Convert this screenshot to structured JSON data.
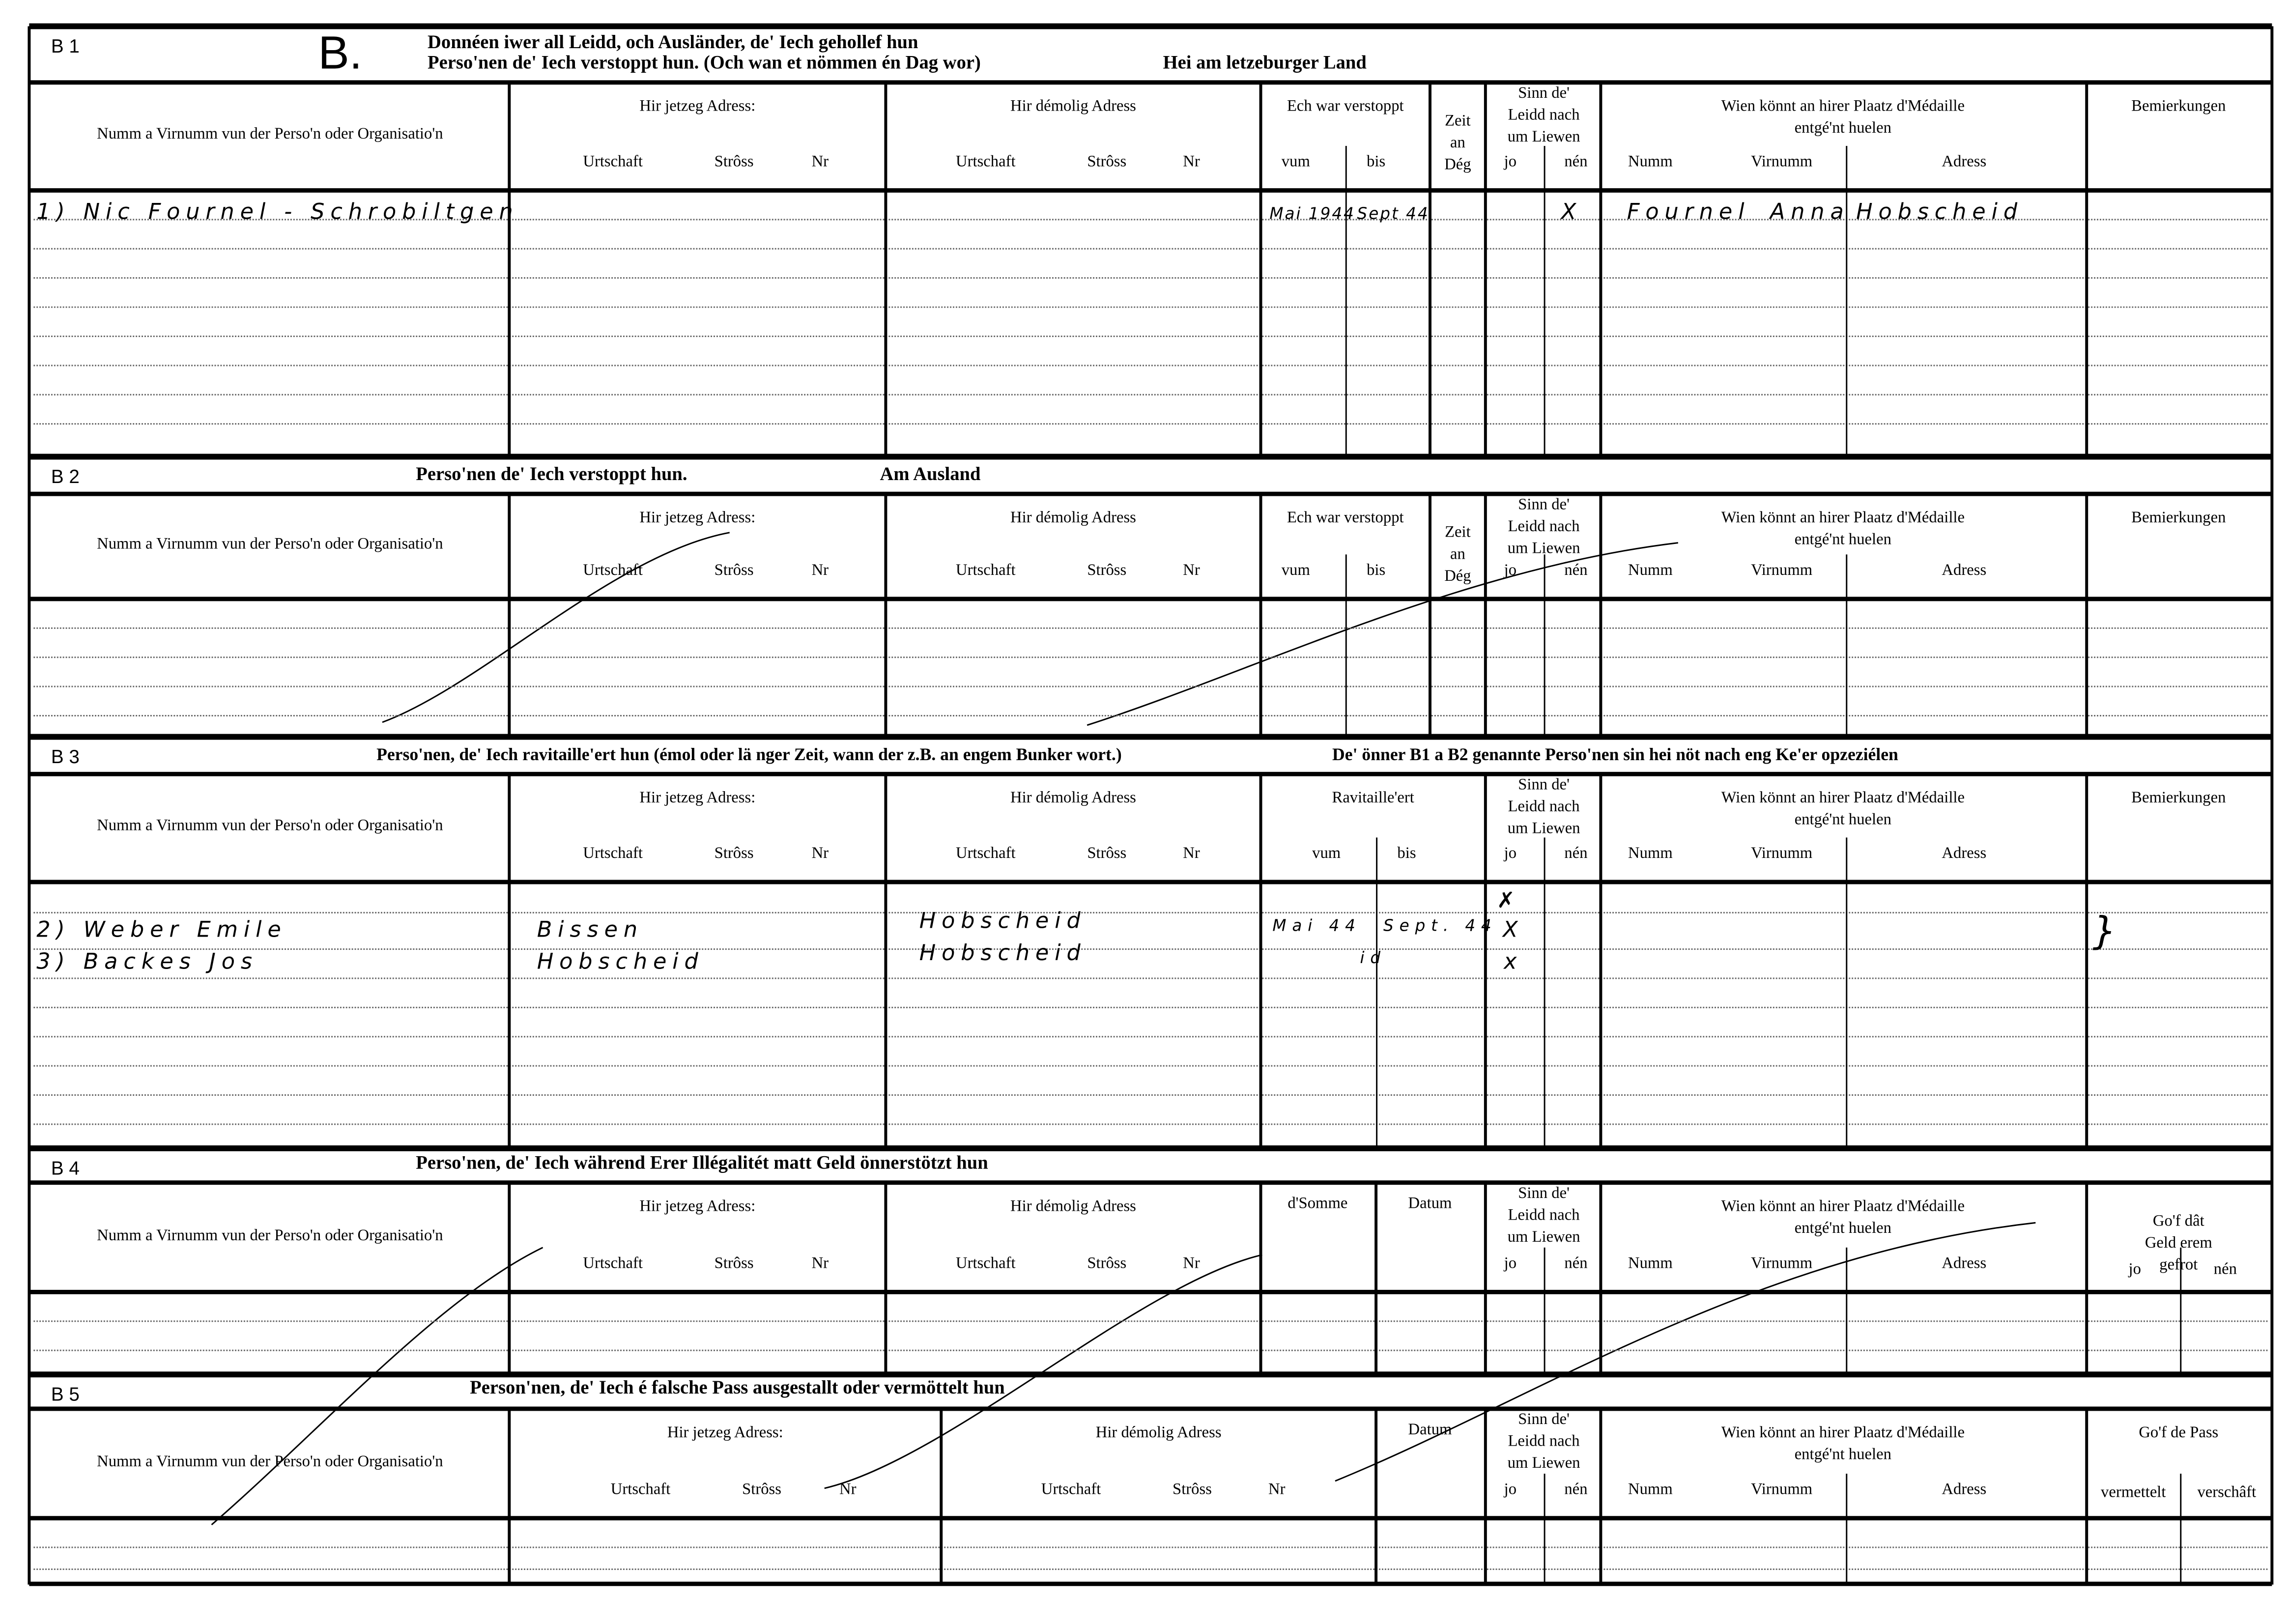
{
  "form_letter": "B.",
  "sections": [
    {
      "code": "B 1",
      "title": "Donnéen iwer all Leidd, och Ausländer, de' Iech gehollef hun",
      "subtitle": "Perso'nen de' Iech verstoppt hun. (Och wan et nömmen én Dag wor)",
      "location": "Hei am letzeburger Land",
      "headers": {
        "name": "Numm a Virnumm vun der Perso'n oder Organisatio'n",
        "current_address": "Hir jetzeg Adress:",
        "former_address": "Hir démolig Adress",
        "town": "Urtschaft",
        "street": "Strôss",
        "nr": "Nr",
        "period": "Ech war verstoppt",
        "from": "vum",
        "to": "bis",
        "days": "Zeit\nan\nDég",
        "alive": "Sinn  de'\nLeidd  nach\num Liewen",
        "yes": "jo",
        "no": "nén",
        "medal": "Wien  könnt  an  hirer  Plaatz  d'Médaille\nentgé'nt huelen",
        "surname": "Numm",
        "firstname": "Virnumm",
        "address": "Adress",
        "remarks": "Bemierkungen"
      },
      "rows": [
        {
          "name": "1) Nic   Fournel - Schrobiltgen",
          "from": "Mai 1944",
          "to": "Sept 44",
          "no": "X",
          "medal_surname": "Fournel",
          "medal_firstname": "Anna",
          "medal_address": "Hobscheid"
        }
      ]
    },
    {
      "code": "B 2",
      "title": "Perso'nen de' Iech verstoppt hun.",
      "location": "Am Ausland",
      "headers": {
        "name": "Numm a Virnumm vun der Perso'n oder Organisatio'n",
        "current_address": "Hir jetzeg Adress:",
        "former_address": "Hir démolig Adress",
        "town": "Urtschaft",
        "street": "Strôss",
        "nr": "Nr",
        "period": "Ech war verstoppt",
        "from": "vum",
        "to": "bis",
        "days": "Zeit\nan\nDég",
        "alive": "Sinn  de'\nLeidd  nach\num Liewen",
        "yes": "jo",
        "no": "nén",
        "medal": "Wien  könnt  an  hirer  Plaatz  d'Médaille\nentgé'nt huelen",
        "surname": "Numm",
        "firstname": "Virnumm",
        "address": "Adress",
        "remarks": "Bemierkungen"
      },
      "rows": []
    },
    {
      "code": "B 3",
      "title": "Perso'nen, de' Iech ravitaille'ert hun (émol oder lä nger Zeit, wann der z.B. an engem Bunker wort.)",
      "note": "De' önner B1 a B2 genannte Perso'nen sin hei nöt nach eng Ke'er opzeziélen",
      "headers": {
        "name": "Numm a Virnumm vun der Perso'n oder Organisatio'n",
        "current_address": "Hir jetzeg Adress:",
        "former_address": "Hir démolig Adress",
        "town": "Urtschaft",
        "street": "Strôss",
        "nr": "Nr",
        "period": "Ravitaille'ert",
        "from": "vum",
        "to": "bis",
        "alive": "Sinn  de'\nLeidd  nach\num Liewen",
        "yes": "jo",
        "no": "nén",
        "medal": "Wien  könnt  an  hirer  Plaatz  d'Médaille\nentgé'nt huelen",
        "surname": "Numm",
        "firstname": "Virnumm",
        "address": "Adress",
        "remarks": "Bemierkungen"
      },
      "extra_mark": "✗",
      "remarks_brace": "}",
      "rows": [
        {
          "name": "2) Weber  Emile",
          "current_town": "Bissen",
          "former_town": "Hobscheid",
          "from": "Mai 44",
          "to": "Sept. 44",
          "yes": "X"
        },
        {
          "name": "3) Backes  Jos",
          "current_town": "Hobscheid",
          "former_town": "Hobscheid",
          "to": "id",
          "yes": "x"
        }
      ]
    },
    {
      "code": "B 4",
      "title": "Perso'nen, de' Iech während Erer Illégalitét matt  Geld önnerstötzt hun",
      "headers": {
        "name": "Numm a Virnumm vun der Perso'n oder Organisatio'n",
        "current_address": "Hir jetzeg Adress:",
        "former_address": "Hir démolig Adress",
        "town": "Urtschaft",
        "street": "Strôss",
        "nr": "Nr",
        "sum": "d'Somme",
        "date": "Datum",
        "alive": "Sinn  de'\nLeidd  nach\num Liewen",
        "yes": "jo",
        "no": "nén",
        "medal": "Wien  könnt  an  hirer  Plaatz  d'Médaille\nentgé'nt huelen",
        "surname": "Numm",
        "firstname": "Virnumm",
        "address": "Adress",
        "refund": "Go'f  dât\nGeld  erem  gefrot",
        "refund_yes": "jo",
        "refund_no": "nén"
      },
      "rows": []
    },
    {
      "code": "B 5",
      "title": "Person'nen, de' Iech é falsche Pass ausgestallt oder  vermöttelt hun",
      "headers": {
        "name": "Numm a Virnumm vun der Perso'n oder Organisatio'n",
        "current_address": "Hir jetzeg Adress:",
        "former_address": "Hir démolig Adress",
        "town": "Urtschaft",
        "street": "Strôss",
        "nr": "Nr",
        "date": "Datum",
        "alive": "Sinn  de'\nLeidd  nach\num Liewen",
        "yes": "jo",
        "no": "nén",
        "medal": "Wien  könnt  an  hirer  Plaatz  d'Médaille\nentgé'nt huelen",
        "surname": "Numm",
        "firstname": "Virnumm",
        "address": "Adress",
        "pass": "Go'f de Pass",
        "arranged": "vermettelt",
        "provided": "verschâft"
      },
      "rows": []
    }
  ]
}
